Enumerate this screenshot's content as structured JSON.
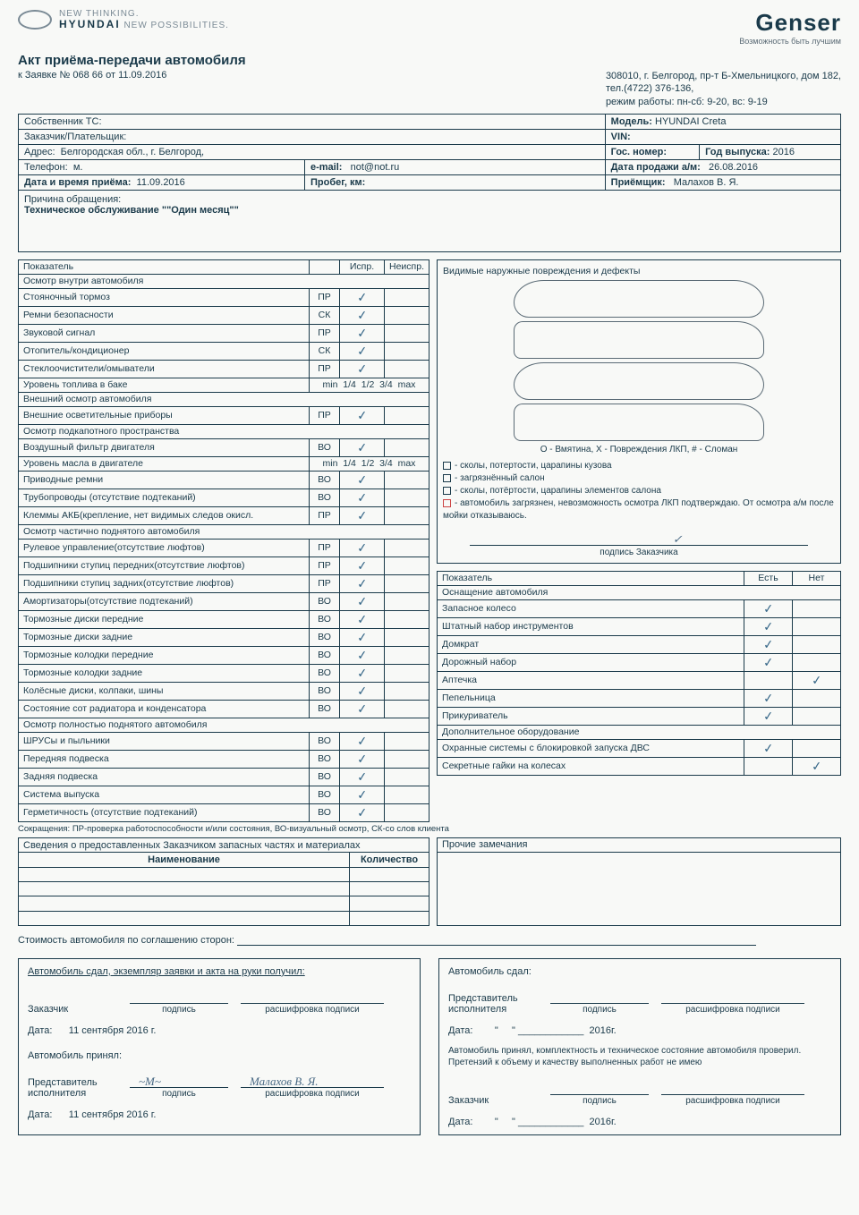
{
  "logo": {
    "line1": "NEW THINKING.",
    "line2": "NEW POSSIBILITIES.",
    "brand": "HYUNDAI"
  },
  "genser": {
    "title": "Genser",
    "sub": "Возможность быть лучшим"
  },
  "title": "Акт приёма-передачи автомобиля",
  "subline": "к Заявке № 068        66 от 11.09.2016",
  "company": {
    "addr": "308010, г. Белгород, пр-т Б-Хмельницкого, дом 182,",
    "tel": "тел.(4722) 376-136,",
    "hours": "режим работы: пн-сб: 9-20, вс: 9-19"
  },
  "info": {
    "owner_lbl": "Собственник ТС:",
    "customer_lbl": "Заказчик/Плательщик:",
    "addr_lbl": "Адрес:",
    "addr_val": "Белгородская обл., г. Белгород,",
    "phone_lbl": "Телефон:",
    "phone_val": "м.",
    "email_lbl": "e-mail:",
    "email_val": "not@not.ru",
    "date_lbl": "Дата и время приёма:",
    "date_val": "11.09.2016",
    "mileage_lbl": "Пробег, км:",
    "model_lbl": "Модель:",
    "model_val": "HYUNDAI Creta",
    "vin_lbl": "VIN:",
    "plate_lbl": "Гос. номер:",
    "year_lbl": "Год выпуска:",
    "year_val": "2016",
    "sale_lbl": "Дата продажи а/м:",
    "sale_val": "26.08.2016",
    "recv_lbl": "Приёмщик:",
    "recv_val": "Малахов В. Я."
  },
  "reason": {
    "lbl": "Причина обращения:",
    "val": "Техническое обслуживание \"\"Один месяц\"\""
  },
  "insp": {
    "header": {
      "param": "Показатель",
      "ok": "Испр.",
      "bad": "Неиспр."
    },
    "fuel_scale": [
      "min",
      "1/4",
      "1/2",
      "3/4",
      "max"
    ],
    "rows": [
      {
        "t": "section",
        "label": "Осмотр внутри автомобиля"
      },
      {
        "t": "r",
        "label": "Стояночный тормоз",
        "code": "ПР",
        "ok": true
      },
      {
        "t": "r",
        "label": "Ремни безопасности",
        "code": "СК",
        "ok": true
      },
      {
        "t": "r",
        "label": "Звуковой сигнал",
        "code": "ПР",
        "ok": true
      },
      {
        "t": "r",
        "label": "Отопитель/кондиционер",
        "code": "СК",
        "ok": true
      },
      {
        "t": "r",
        "label": "Стеклоочистители/омыватели",
        "code": "ПР",
        "ok": true
      },
      {
        "t": "fuel",
        "label": "Уровень топлива в баке"
      },
      {
        "t": "section",
        "label": "Внешний осмотр автомобиля"
      },
      {
        "t": "r",
        "label": "Внешние осветительные приборы",
        "code": "ПР",
        "ok": true
      },
      {
        "t": "section",
        "label": "Осмотр подкапотного пространства"
      },
      {
        "t": "r",
        "label": "Воздушный фильтр двигателя",
        "code": "ВО",
        "ok": true
      },
      {
        "t": "fuel",
        "label": "Уровень масла в двигателе"
      },
      {
        "t": "r",
        "label": "Приводные ремни",
        "code": "ВО",
        "ok": true
      },
      {
        "t": "r",
        "label": "Трубопроводы (отсутствие подтеканий)",
        "code": "ВО",
        "ok": true
      },
      {
        "t": "r",
        "label": "Клеммы АКБ(крепление, нет видимых следов окисл.",
        "code": "ПР",
        "ok": true
      },
      {
        "t": "section",
        "label": "Осмотр частично поднятого автомобиля"
      },
      {
        "t": "r",
        "label": "Рулевое управление(отсутствие люфтов)",
        "code": "ПР",
        "ok": true
      },
      {
        "t": "r",
        "label": "Подшипники ступиц передних(отсутствие люфтов)",
        "code": "ПР",
        "ok": true
      },
      {
        "t": "r",
        "label": "Подшипники ступиц задних(отсутствие люфтов)",
        "code": "ПР",
        "ok": true
      },
      {
        "t": "r",
        "label": "Амортизаторы(отсутствие подтеканий)",
        "code": "ВО",
        "ok": true
      },
      {
        "t": "r",
        "label": "Тормозные диски передние",
        "code": "ВО",
        "ok": true
      },
      {
        "t": "r",
        "label": "Тормозные диски задние",
        "code": "ВО",
        "ok": true
      },
      {
        "t": "r",
        "label": "Тормозные колодки передние",
        "code": "ВО",
        "ok": true
      },
      {
        "t": "r",
        "label": "Тормозные колодки задние",
        "code": "ВО",
        "ok": true
      },
      {
        "t": "r",
        "label": "Колёсные диски, колпаки, шины",
        "code": "ВО",
        "ok": true
      },
      {
        "t": "r",
        "label": "Состояние сот радиатора и конденсатора",
        "code": "ВО",
        "ok": true
      },
      {
        "t": "section",
        "label": "Осмотр полностью поднятого автомобиля"
      },
      {
        "t": "r",
        "label": "ШРУСы и пыльники",
        "code": "ВО",
        "ok": true
      },
      {
        "t": "r",
        "label": "Передняя подвеска",
        "code": "ВО",
        "ok": true
      },
      {
        "t": "r",
        "label": "Задняя подвеска",
        "code": "ВО",
        "ok": true
      },
      {
        "t": "r",
        "label": "Система выпуска",
        "code": "ВО",
        "ok": true
      },
      {
        "t": "r",
        "label": "Герметичность (отсутствие подтеканий)",
        "code": "ВО",
        "ok": true
      }
    ]
  },
  "damage": {
    "title": "Видимые наружные повреждения и дефекты",
    "legend": "О - Вмятина,  X - Повреждения ЛКП,  # - Сломан",
    "opts": [
      "- сколы, потертости, царапины кузова",
      "- загрязнённый салон",
      "- сколы, потёртости, царапины элементов салона",
      "- автомобиль загрязнен, невозможность осмотра ЛКП подтверждаю. От осмотра а/м после мойки отказываюсь."
    ],
    "sig": "подпись Заказчика"
  },
  "equip": {
    "header": {
      "param": "Показатель",
      "yes": "Есть",
      "no": "Нет"
    },
    "rows": [
      {
        "t": "section",
        "label": "Оснащение автомобиля"
      },
      {
        "t": "r",
        "label": "Запасное колесо",
        "yes": true
      },
      {
        "t": "r",
        "label": "Штатный набор инструментов",
        "yes": true
      },
      {
        "t": "r",
        "label": "Домкрат",
        "yes": true
      },
      {
        "t": "r",
        "label": "Дорожный набор",
        "yes": true
      },
      {
        "t": "r",
        "label": "Аптечка",
        "no": true
      },
      {
        "t": "r",
        "label": "Пепельница",
        "yes": true
      },
      {
        "t": "r",
        "label": "Прикуриватель",
        "yes": true
      },
      {
        "t": "section",
        "label": "Дополнительное оборудование"
      },
      {
        "t": "r",
        "label": "Охранные системы с блокировкой запуска ДВС",
        "yes": true
      },
      {
        "t": "r",
        "label": "Секретные гайки на колесах",
        "no": true
      }
    ]
  },
  "abbrev": "Сокращения: ПР-проверка работоспособности и/или состояния, ВО-визуальный осмотр, СК-со слов клиента",
  "parts": {
    "title": "Сведения о предоставленных Заказчиком запасных частях и материалах",
    "h1": "Наименование",
    "h2": "Количество"
  },
  "notes": {
    "title": "Прочие замечания"
  },
  "cost": "Стоимость автомобиля по соглашению сторон:",
  "sig_left": {
    "line1": "Автомобиль сдал, экземпляр заявки и акта на руки получил:",
    "role1": "Заказчик",
    "sub_sig": "подпись",
    "sub_dec": "расшифровка подписи",
    "date_lbl": "Дата:",
    "date_val": "11 сентября 2016 г.",
    "line2": "Автомобиль принял:",
    "role2": "Представитель исполнителя",
    "name": "Малахов В. Я."
  },
  "sig_right": {
    "line1": "Автомобиль сдал:",
    "role1": "Представитель исполнителя",
    "sub_sig": "подпись",
    "sub_dec": "расшифровка подписи",
    "date_lbl": "Дата:",
    "year": "2016г.",
    "note": "Автомобиль принял, комплектность и техническое состояние автомобиля проверил. Претензий к объему и качеству выполненных работ не имею",
    "role2": "Заказчик"
  }
}
